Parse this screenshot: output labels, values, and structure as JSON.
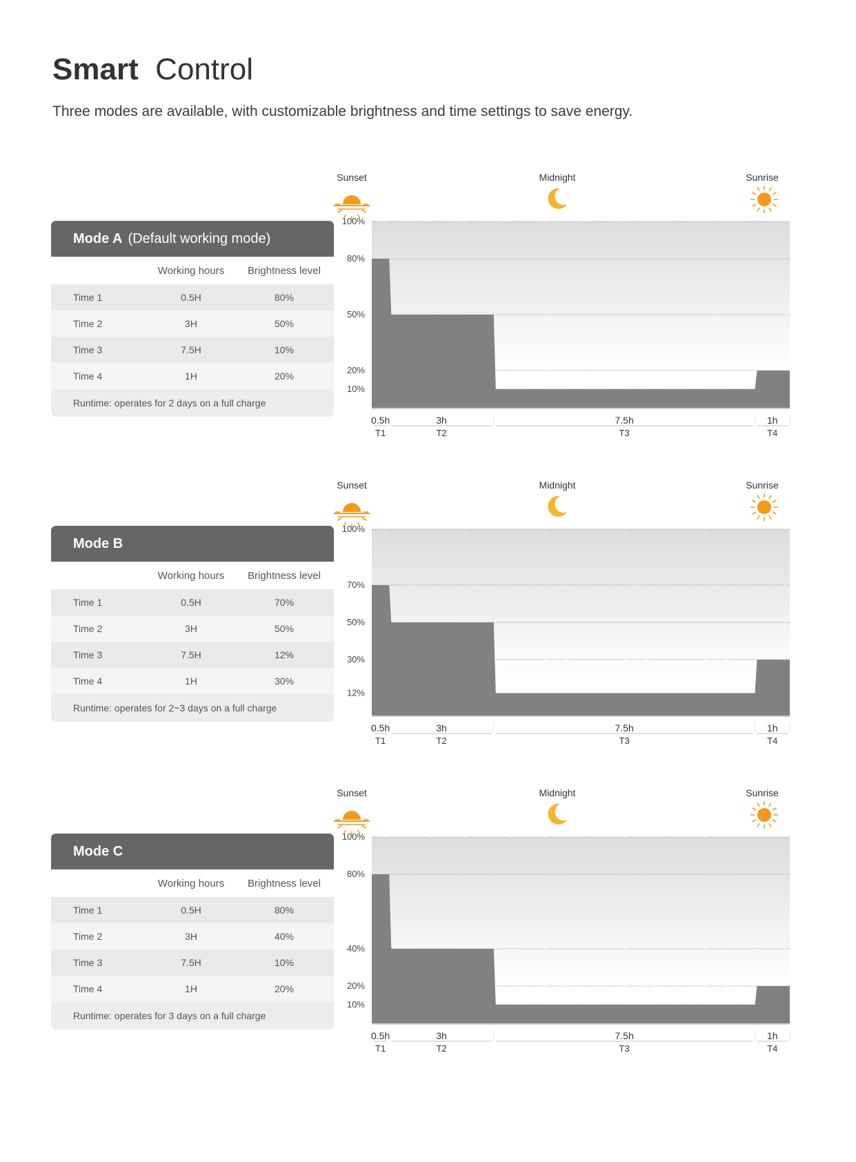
{
  "header": {
    "title_strong": "Smart",
    "title_rest": "Control",
    "subtitle": "Three modes are available, with customizable brightness and time settings to save energy."
  },
  "table_labels": {
    "working_hours": "Working hours",
    "brightness_level": "Brightness level"
  },
  "colors": {
    "table_header": "#666666",
    "area_fill": "#818183",
    "sun": "#f39a1e",
    "moon": "#f7b52a"
  },
  "icons": {
    "sunset": "sunset-icon",
    "midnight": "moon-icon",
    "sunrise": "sun-icon"
  },
  "modes": [
    {
      "name": "Mode A",
      "note": "(Default working mode)",
      "rows": [
        {
          "time": "Time 1",
          "hours": "0.5H",
          "brightness": "80%"
        },
        {
          "time": "Time 2",
          "hours": "3H",
          "brightness": "50%"
        },
        {
          "time": "Time 3",
          "hours": "7.5H",
          "brightness": "10%"
        },
        {
          "time": "Time 4",
          "hours": "1H",
          "brightness": "20%"
        }
      ],
      "runtime": "Runtime: operates for 2 days on a full charge"
    },
    {
      "name": "Mode B",
      "note": "",
      "rows": [
        {
          "time": "Time 1",
          "hours": "0.5H",
          "brightness": "70%"
        },
        {
          "time": "Time 2",
          "hours": "3H",
          "brightness": "50%"
        },
        {
          "time": "Time 3",
          "hours": "7.5H",
          "brightness": "12%"
        },
        {
          "time": "Time 4",
          "hours": "1H",
          "brightness": "30%"
        }
      ],
      "runtime": "Runtime: operates for 2~3 days on a full charge"
    },
    {
      "name": "Mode C",
      "note": "",
      "rows": [
        {
          "time": "Time 1",
          "hours": "0.5H",
          "brightness": "80%"
        },
        {
          "time": "Time 2",
          "hours": "3H",
          "brightness": "40%"
        },
        {
          "time": "Time 3",
          "hours": "7.5H",
          "brightness": "10%"
        },
        {
          "time": "Time 4",
          "hours": "1H",
          "brightness": "20%"
        }
      ],
      "runtime": "Runtime: operates for 3 days on a full charge"
    }
  ],
  "chart_data": [
    {
      "type": "area",
      "top_labels": [
        "Sunset",
        "Midnight",
        "Sunrise"
      ],
      "segments": [
        {
          "duration_label": "0.5h",
          "name": "T1",
          "hours": 0.5,
          "value": 80
        },
        {
          "duration_label": "3h",
          "name": "T2",
          "hours": 3,
          "value": 50
        },
        {
          "duration_label": "7.5h",
          "name": "T3",
          "hours": 7.5,
          "value": 10
        },
        {
          "duration_label": "1h",
          "name": "T4",
          "hours": 1,
          "value": 20
        }
      ],
      "y_ticks": [
        {
          "value": 100,
          "label": "100%"
        },
        {
          "value": 80,
          "label": "80%"
        },
        {
          "value": 50,
          "label": "50%"
        },
        {
          "value": 20,
          "label": "20%"
        },
        {
          "value": 10,
          "label": "10%"
        }
      ],
      "ylim": [
        0,
        100
      ]
    },
    {
      "type": "area",
      "top_labels": [
        "Sunset",
        "Midnight",
        "Sunrise"
      ],
      "segments": [
        {
          "duration_label": "0.5h",
          "name": "T1",
          "hours": 0.5,
          "value": 70
        },
        {
          "duration_label": "3h",
          "name": "T2",
          "hours": 3,
          "value": 50
        },
        {
          "duration_label": "7.5h",
          "name": "T3",
          "hours": 7.5,
          "value": 12
        },
        {
          "duration_label": "1h",
          "name": "T4",
          "hours": 1,
          "value": 30
        }
      ],
      "y_ticks": [
        {
          "value": 100,
          "label": "100%"
        },
        {
          "value": 70,
          "label": "70%"
        },
        {
          "value": 50,
          "label": "50%"
        },
        {
          "value": 30,
          "label": "30%"
        },
        {
          "value": 12,
          "label": "12%"
        }
      ],
      "ylim": [
        0,
        100
      ]
    },
    {
      "type": "area",
      "top_labels": [
        "Sunset",
        "Midnight",
        "Sunrise"
      ],
      "segments": [
        {
          "duration_label": "0.5h",
          "name": "T1",
          "hours": 0.5,
          "value": 80
        },
        {
          "duration_label": "3h",
          "name": "T2",
          "hours": 3,
          "value": 40
        },
        {
          "duration_label": "7.5h",
          "name": "T3",
          "hours": 7.5,
          "value": 10
        },
        {
          "duration_label": "1h",
          "name": "T4",
          "hours": 1,
          "value": 20
        }
      ],
      "y_ticks": [
        {
          "value": 100,
          "label": "100%"
        },
        {
          "value": 80,
          "label": "80%"
        },
        {
          "value": 40,
          "label": "40%"
        },
        {
          "value": 20,
          "label": "20%"
        },
        {
          "value": 10,
          "label": "10%"
        }
      ],
      "ylim": [
        0,
        100
      ]
    }
  ]
}
